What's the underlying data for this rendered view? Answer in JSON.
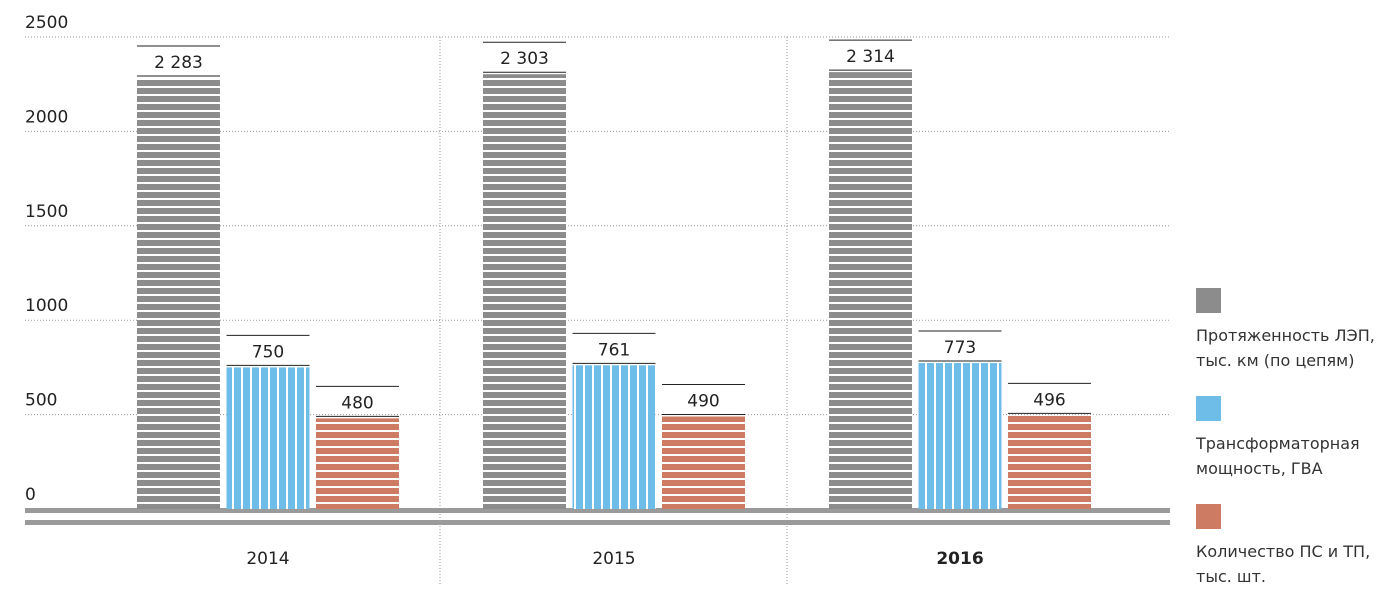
{
  "chart_data": {
    "type": "bar",
    "categories": [
      "2014",
      "2015",
      "2016"
    ],
    "series": [
      {
        "name": "Протяженность ЛЭП, тыс. км (по цепям)",
        "color": "#8c8c8c",
        "values": [
          2283,
          2303,
          2314
        ],
        "value_labels": [
          "2 283",
          "2 303",
          "2 314"
        ]
      },
      {
        "name": "Трансформаторная мощность, ГВА",
        "color": "#6dbde8",
        "values": [
          750,
          761,
          773
        ],
        "value_labels": [
          "750",
          "761",
          "773"
        ]
      },
      {
        "name": "Количество ПС и ТП, тыс. шт.",
        "color": "#cd7b63",
        "values": [
          480,
          490,
          496
        ],
        "value_labels": [
          "480",
          "490",
          "496"
        ]
      }
    ],
    "ylim": [
      0,
      2500
    ],
    "yticks": [
      0,
      500,
      1000,
      1500,
      2000,
      2500
    ],
    "grid": true,
    "legend": "right"
  }
}
